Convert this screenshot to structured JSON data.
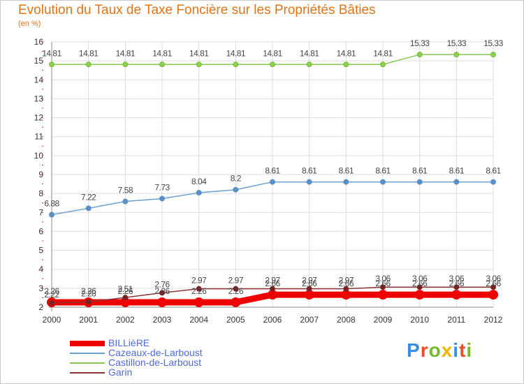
{
  "header": {
    "title": "Evolution du Taux de Taxe Foncière sur les Propriétés Bâties",
    "unit": "(en %)"
  },
  "brand": {
    "logo_text": "Proxiti",
    "letter_colors": [
      "#3a8de0",
      "#e8502a",
      "#7ab830",
      "#f0b400",
      "#3a8de0",
      "#e8502a",
      "#7ab830"
    ]
  },
  "chart_data": {
    "type": "line",
    "title": "Evolution du Taux de Taxe Foncière sur les Propriétés Bâties",
    "ylabel": "(en %)",
    "xlabel": "",
    "ylim": [
      2,
      16
    ],
    "yticks": [
      2,
      3,
      4,
      5,
      6,
      7,
      8,
      9,
      10,
      11,
      12,
      13,
      14,
      15,
      16
    ],
    "grid": true,
    "legend_position": "bottom-left",
    "categories": [
      "2000",
      "2001",
      "2002",
      "2003",
      "2004",
      "2005",
      "2006",
      "2007",
      "2008",
      "2009",
      "2010",
      "2011",
      "2012"
    ],
    "series": [
      {
        "name": "BILLièRE",
        "color": "#ee0000",
        "values": [
          2.26,
          2.26,
          2.26,
          2.26,
          2.26,
          2.26,
          2.66,
          2.66,
          2.66,
          2.66,
          2.66,
          2.66,
          2.66
        ],
        "labels": [
          "2.26",
          "2.26",
          "2.26",
          "2.26",
          "2.26",
          "2.26",
          "2.66",
          "2.66",
          "2.66",
          "2.66",
          "2.66",
          "2.66",
          "2.66"
        ]
      },
      {
        "name": "Cazeaux-de-Larboust",
        "color": "#6a9fd0",
        "values": [
          6.88,
          7.22,
          7.58,
          7.73,
          8.04,
          8.2,
          8.61,
          8.61,
          8.61,
          8.61,
          8.61,
          8.61,
          8.61
        ],
        "labels": [
          "6.88",
          "7.22",
          "7.58",
          "7.73",
          "8.04",
          "8.2",
          "8.61",
          "8.61",
          "8.61",
          "8.61",
          "8.61",
          "8.61",
          "8.61"
        ]
      },
      {
        "name": "Castillon-de-Larboust",
        "color": "#86c850",
        "values": [
          14.81,
          14.81,
          14.81,
          14.81,
          14.81,
          14.81,
          14.81,
          14.81,
          14.81,
          14.81,
          15.33,
          15.33,
          15.33
        ],
        "labels": [
          "14.81",
          "14.81",
          "14.81",
          "14.81",
          "14.81",
          "14.81",
          "14.81",
          "14.81",
          "14.81",
          "14.81",
          "15.33",
          "15.33",
          "15.33"
        ]
      },
      {
        "name": "Garin",
        "color": "#8b3535",
        "values": [
          2.22,
          2.28,
          2.51,
          2.76,
          2.97,
          2.97,
          2.97,
          2.97,
          2.97,
          3.06,
          3.06,
          3.06,
          3.06
        ],
        "labels": [
          "2.22",
          "2.28",
          "2.51",
          "2.76",
          "2.97",
          "2.97",
          "2.97",
          "2.97",
          "2.97",
          "3.06",
          "3.06",
          "3.06",
          "3.06"
        ]
      }
    ]
  }
}
